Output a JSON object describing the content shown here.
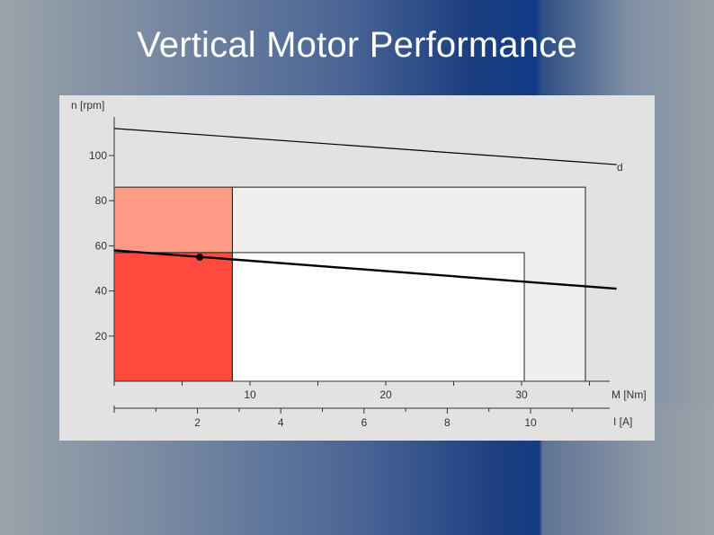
{
  "slide": {
    "title": "Vertical Motor Performance"
  },
  "chart_data": {
    "type": "line",
    "y_axis": {
      "label": "n [rpm]",
      "ticks": [
        20,
        40,
        60,
        80,
        100
      ],
      "range": [
        0,
        120
      ]
    },
    "x_axis_torque": {
      "label": "M [Nm]",
      "ticks": [
        10,
        20,
        30
      ],
      "range": [
        0,
        37
      ]
    },
    "x_axis_current": {
      "label": "I [A]",
      "ticks": [
        2,
        4,
        6,
        8,
        10
      ],
      "range": [
        0,
        12
      ]
    },
    "series": [
      {
        "name": "d",
        "x": [
          0,
          37
        ],
        "y": [
          112,
          96
        ]
      },
      {
        "x": [
          0,
          37
        ],
        "y": [
          58,
          41
        ]
      }
    ],
    "operating_point": {
      "x": 6.3,
      "y": 55
    },
    "regions": [
      {
        "x": [
          0,
          8.7
        ],
        "y": [
          0,
          57
        ],
        "color": "#ff4a3d"
      },
      {
        "x": [
          0,
          8.7
        ],
        "y": [
          57,
          86
        ],
        "color": "#ff9a86"
      },
      {
        "x": [
          8.7,
          30.2
        ],
        "y": [
          0,
          57
        ],
        "color": "#ffffff"
      },
      {
        "x": [
          8.7,
          34.7
        ],
        "y": [
          0,
          86
        ],
        "color": "#efefef"
      }
    ]
  }
}
